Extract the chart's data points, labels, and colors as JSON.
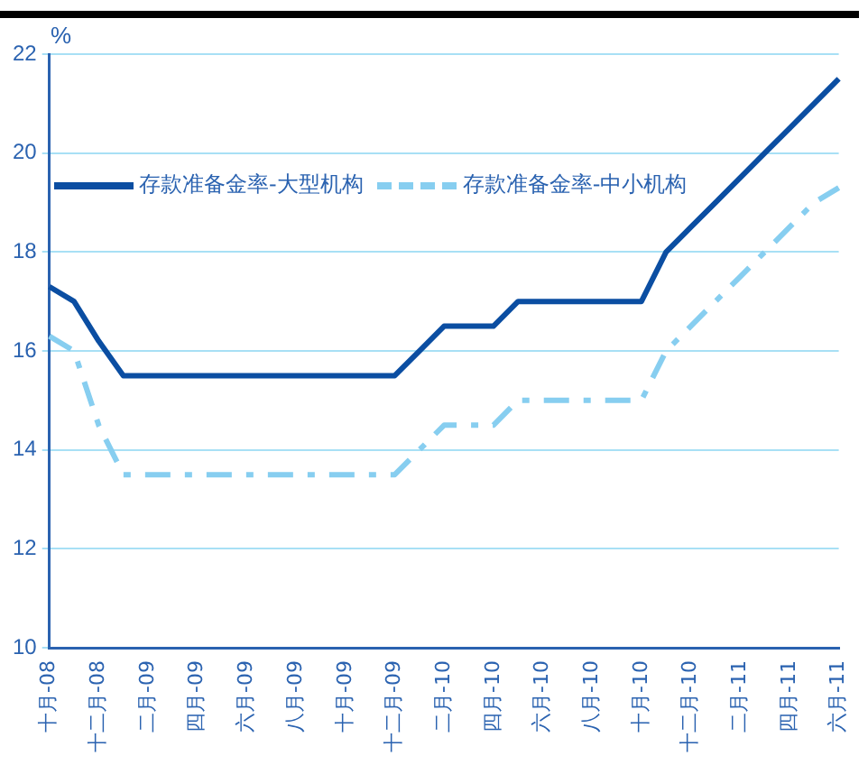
{
  "chart_data": {
    "type": "line",
    "ylabel": "%",
    "categories": [
      "十月-08",
      null,
      "十二月-08",
      null,
      "二月-09",
      null,
      "四月-09",
      null,
      "六月-09",
      null,
      "八月-09",
      null,
      "十月-09",
      null,
      "十二月-09",
      null,
      "二月-10",
      null,
      "四月-10",
      null,
      "六月-10",
      null,
      "八月-10",
      null,
      "十月-10",
      null,
      "十二月-10",
      null,
      "二月-11",
      null,
      "四月-11",
      null,
      "六月-11"
    ],
    "series": [
      {
        "name": "存款准备金率-大型机构",
        "color": "#0b4ea2",
        "line_style": "solid",
        "values": [
          17.3,
          17,
          16.2,
          15.5,
          15.5,
          15.5,
          15.5,
          15.5,
          15.5,
          15.5,
          15.5,
          15.5,
          15.5,
          15.5,
          15.5,
          16,
          16.5,
          16.5,
          16.5,
          17,
          17,
          17,
          17,
          17,
          17,
          18,
          18.5,
          19,
          19.5,
          20,
          20.5,
          21,
          21.5
        ]
      },
      {
        "name": "存款准备金率-中小机构",
        "color": "#87cef0",
        "line_style": "dashed",
        "values": [
          16.3,
          16,
          14.5,
          13.5,
          13.5,
          13.5,
          13.5,
          13.5,
          13.5,
          13.5,
          13.5,
          13.5,
          13.5,
          13.5,
          13.5,
          14,
          14.5,
          14.5,
          14.5,
          15,
          15,
          15,
          15,
          15,
          15,
          16,
          16.5,
          17,
          17.5,
          18,
          18.5,
          19,
          19.3
        ]
      }
    ],
    "ylim": [
      10,
      22
    ],
    "yticks": [
      10,
      12,
      14,
      16,
      18,
      20,
      22
    ],
    "grid": "y",
    "legend": "top left",
    "marker": "none"
  }
}
